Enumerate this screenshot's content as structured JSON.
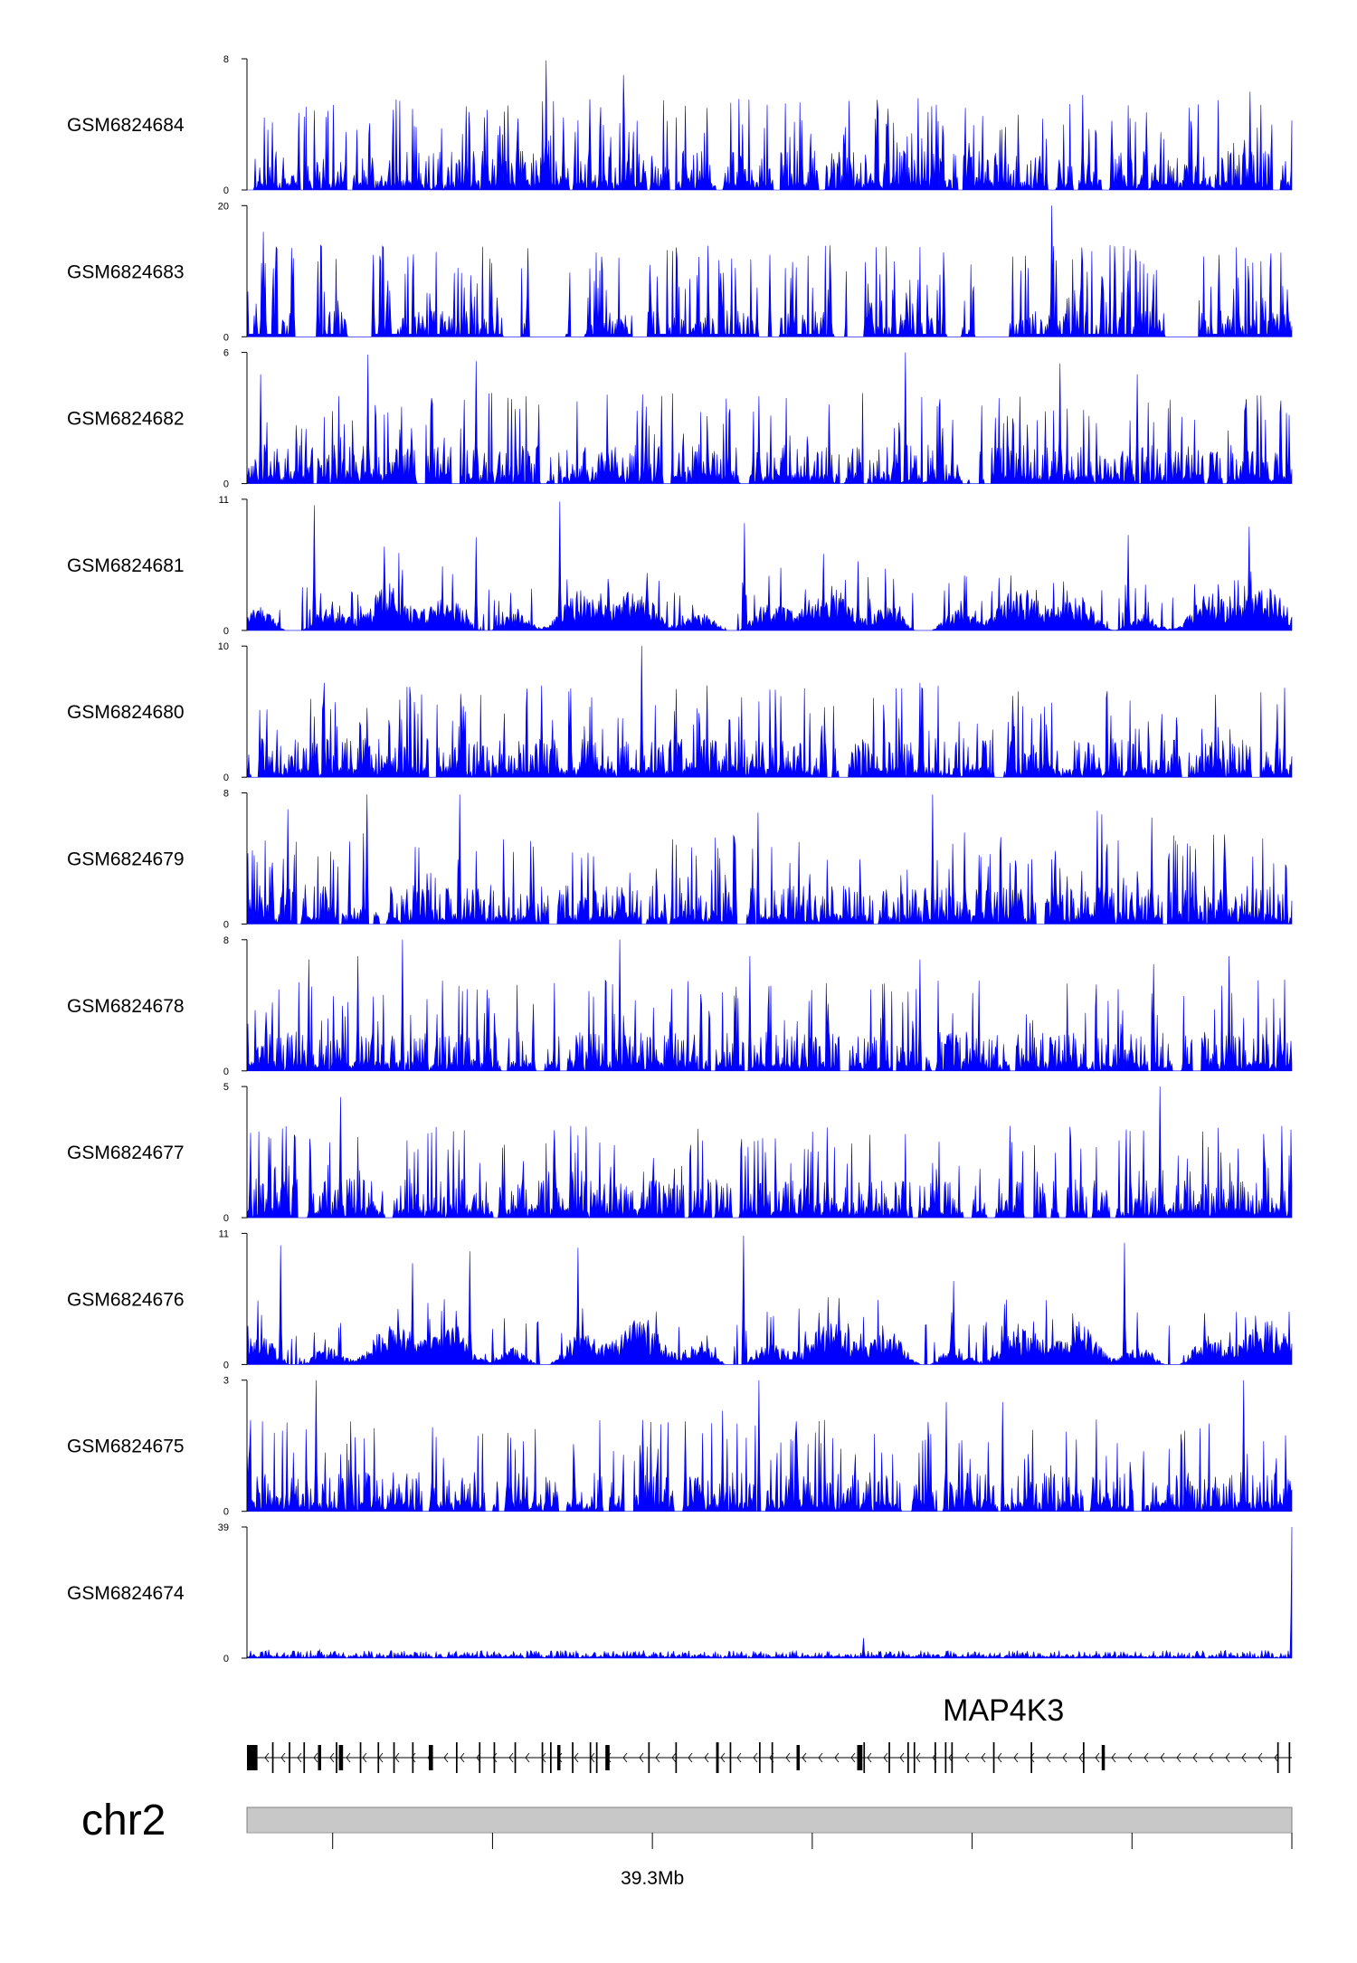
{
  "chart_data": {
    "type": "area",
    "colors": {
      "signal": "#0000ff",
      "axis": "#000000",
      "ideogram": "#c8c8c8",
      "ideogram_border": "#808080"
    },
    "tracks": [
      {
        "name": "GSM6824684",
        "ylim": [
          0,
          8
        ],
        "ymin_label": "0",
        "ymax_label": "8",
        "style": "spiky",
        "seed": 11,
        "peaks": [
          {
            "x": 0.286,
            "y": 7.9
          },
          {
            "x": 0.36,
            "y": 7.0
          },
          {
            "x": 0.96,
            "y": 6.0
          },
          {
            "x": 0.8,
            "y": 5.8
          },
          {
            "x": 0.44,
            "y": 5.0
          },
          {
            "x": 0.05,
            "y": 4.7
          },
          {
            "x": 0.21,
            "y": 5.1
          },
          {
            "x": 0.66,
            "y": 5.2
          }
        ]
      },
      {
        "name": "GSM6824683",
        "ylim": [
          0,
          20
        ],
        "ymin_label": "0",
        "ymax_label": "20",
        "style": "sparse",
        "seed": 23,
        "peaks": [
          {
            "x": 0.77,
            "y": 20
          },
          {
            "x": 0.269,
            "y": 13.5
          },
          {
            "x": 0.5,
            "y": 12.5
          },
          {
            "x": 0.016,
            "y": 16
          },
          {
            "x": 0.62,
            "y": 11.5
          },
          {
            "x": 0.83,
            "y": 13.8
          },
          {
            "x": 0.93,
            "y": 12.5
          },
          {
            "x": 0.068,
            "y": 11.5
          }
        ]
      },
      {
        "name": "GSM6824682",
        "ylim": [
          0,
          6
        ],
        "ymin_label": "0",
        "ymax_label": "6",
        "style": "spiky",
        "seed": 37,
        "peaks": [
          {
            "x": 0.63,
            "y": 6.0
          },
          {
            "x": 0.116,
            "y": 5.9
          },
          {
            "x": 0.219,
            "y": 5.6
          },
          {
            "x": 0.778,
            "y": 5.5
          },
          {
            "x": 0.852,
            "y": 5.0
          },
          {
            "x": 0.013,
            "y": 5.0
          },
          {
            "x": 0.49,
            "y": 4.0
          }
        ]
      },
      {
        "name": "GSM6824681",
        "ylim": [
          0,
          11
        ],
        "ymin_label": "0",
        "ymax_label": "11",
        "style": "dense",
        "seed": 41,
        "peaks": [
          {
            "x": 0.299,
            "y": 10.8
          },
          {
            "x": 0.064,
            "y": 10.5
          },
          {
            "x": 0.476,
            "y": 9.0
          },
          {
            "x": 0.959,
            "y": 8.7
          },
          {
            "x": 0.843,
            "y": 8.0
          },
          {
            "x": 0.219,
            "y": 7.8
          },
          {
            "x": 0.585,
            "y": 5.8
          }
        ]
      },
      {
        "name": "GSM6824680",
        "ylim": [
          0,
          10
        ],
        "ymin_label": "0",
        "ymax_label": "10",
        "style": "spiky",
        "seed": 53,
        "peaks": [
          {
            "x": 0.378,
            "y": 10.0
          },
          {
            "x": 0.074,
            "y": 7.2
          },
          {
            "x": 0.282,
            "y": 7.0
          },
          {
            "x": 0.44,
            "y": 7.0
          },
          {
            "x": 0.644,
            "y": 7.2
          },
          {
            "x": 0.927,
            "y": 6.3
          },
          {
            "x": 0.733,
            "y": 6.2
          }
        ]
      },
      {
        "name": "GSM6824679",
        "ylim": [
          0,
          8
        ],
        "ymin_label": "0",
        "ymax_label": "8",
        "style": "spiky",
        "seed": 67,
        "peaks": [
          {
            "x": 0.115,
            "y": 7.9
          },
          {
            "x": 0.204,
            "y": 7.9
          },
          {
            "x": 0.656,
            "y": 7.9
          },
          {
            "x": 0.814,
            "y": 6.9
          },
          {
            "x": 0.818,
            "y": 6.7
          },
          {
            "x": 0.039,
            "y": 7.0
          },
          {
            "x": 0.489,
            "y": 6.8
          },
          {
            "x": 0.866,
            "y": 6.5
          }
        ]
      },
      {
        "name": "GSM6824678",
        "ylim": [
          0,
          8
        ],
        "ymin_label": "0",
        "ymax_label": "8",
        "style": "spiky",
        "seed": 71,
        "peaks": [
          {
            "x": 0.149,
            "y": 8.0
          },
          {
            "x": 0.357,
            "y": 8.0
          },
          {
            "x": 0.059,
            "y": 6.8
          },
          {
            "x": 0.106,
            "y": 7.0
          },
          {
            "x": 0.481,
            "y": 7.0
          },
          {
            "x": 0.94,
            "y": 7.0
          },
          {
            "x": 0.868,
            "y": 6.5
          },
          {
            "x": 0.644,
            "y": 6.8
          }
        ]
      },
      {
        "name": "GSM6824677",
        "ylim": [
          0,
          5
        ],
        "ymin_label": "0",
        "ymax_label": "5",
        "style": "spiky",
        "seed": 83,
        "peaks": [
          {
            "x": 0.874,
            "y": 5.0
          },
          {
            "x": 0.09,
            "y": 4.6
          },
          {
            "x": 0.034,
            "y": 3.4
          },
          {
            "x": 0.31,
            "y": 3.5
          },
          {
            "x": 0.73,
            "y": 3.5
          },
          {
            "x": 0.99,
            "y": 3.5
          }
        ]
      },
      {
        "name": "GSM6824676",
        "ylim": [
          0,
          11
        ],
        "ymin_label": "0",
        "ymax_label": "11",
        "style": "dense",
        "seed": 97,
        "peaks": [
          {
            "x": 0.475,
            "y": 10.8
          },
          {
            "x": 0.84,
            "y": 10.2
          },
          {
            "x": 0.032,
            "y": 10.0
          },
          {
            "x": 0.213,
            "y": 9.5
          },
          {
            "x": 0.317,
            "y": 9.8
          },
          {
            "x": 0.158,
            "y": 8.5
          },
          {
            "x": 0.676,
            "y": 7.0
          }
        ]
      },
      {
        "name": "GSM6824675",
        "ylim": [
          0,
          3
        ],
        "ymin_label": "0",
        "ymax_label": "3",
        "style": "spiky",
        "seed": 101,
        "peaks": [
          {
            "x": 0.066,
            "y": 3.0
          },
          {
            "x": 0.49,
            "y": 3.0
          },
          {
            "x": 0.954,
            "y": 3.0
          },
          {
            "x": 0.669,
            "y": 2.5
          },
          {
            "x": 0.723,
            "y": 2.5
          },
          {
            "x": 0.455,
            "y": 2.3
          }
        ]
      },
      {
        "name": "GSM6824674",
        "ylim": [
          0,
          39
        ],
        "ymin_label": "0",
        "ymax_label": "39",
        "style": "flat",
        "seed": 113,
        "peaks": [
          {
            "x": 1.0,
            "y": 39
          },
          {
            "x": 0.59,
            "y": 6
          },
          {
            "x": 0.021,
            "y": 2.5
          },
          {
            "x": 0.07,
            "y": 2.5
          },
          {
            "x": 0.85,
            "y": 2
          }
        ]
      }
    ],
    "gene": {
      "name": "MAP4K3",
      "strand": "-",
      "exons": [
        {
          "x": 0.0,
          "w": 0.01,
          "tall": true
        },
        {
          "x": 0.024,
          "w": 0.0015
        },
        {
          "x": 0.04,
          "w": 0.0015
        },
        {
          "x": 0.054,
          "w": 0.0015
        },
        {
          "x": 0.068,
          "w": 0.003,
          "tall": true
        },
        {
          "x": 0.085,
          "w": 0.0015
        },
        {
          "x": 0.088,
          "w": 0.004,
          "tall": true
        },
        {
          "x": 0.108,
          "w": 0.0015
        },
        {
          "x": 0.125,
          "w": 0.0015
        },
        {
          "x": 0.14,
          "w": 0.0015
        },
        {
          "x": 0.158,
          "w": 0.0015
        },
        {
          "x": 0.174,
          "w": 0.004,
          "tall": true
        },
        {
          "x": 0.2,
          "w": 0.0015
        },
        {
          "x": 0.222,
          "w": 0.0015
        },
        {
          "x": 0.236,
          "w": 0.0015
        },
        {
          "x": 0.256,
          "w": 0.0015
        },
        {
          "x": 0.282,
          "w": 0.0015
        },
        {
          "x": 0.29,
          "w": 0.0015
        },
        {
          "x": 0.297,
          "w": 0.003,
          "tall": true
        },
        {
          "x": 0.311,
          "w": 0.0015
        },
        {
          "x": 0.328,
          "w": 0.0015
        },
        {
          "x": 0.334,
          "w": 0.0015
        },
        {
          "x": 0.343,
          "w": 0.004,
          "tall": true
        },
        {
          "x": 0.384,
          "w": 0.0015
        },
        {
          "x": 0.41,
          "w": 0.0015
        },
        {
          "x": 0.449,
          "w": 0.0015
        },
        {
          "x": 0.45,
          "w": 0.0015
        },
        {
          "x": 0.462,
          "w": 0.0015
        },
        {
          "x": 0.49,
          "w": 0.0015
        },
        {
          "x": 0.502,
          "w": 0.0015
        },
        {
          "x": 0.526,
          "w": 0.003,
          "tall": true
        },
        {
          "x": 0.584,
          "w": 0.005,
          "tall": true
        },
        {
          "x": 0.59,
          "w": 0.0015
        },
        {
          "x": 0.614,
          "w": 0.0015
        },
        {
          "x": 0.632,
          "w": 0.0015
        },
        {
          "x": 0.638,
          "w": 0.0015
        },
        {
          "x": 0.658,
          "w": 0.0015
        },
        {
          "x": 0.668,
          "w": 0.0015
        },
        {
          "x": 0.674,
          "w": 0.0015
        },
        {
          "x": 0.714,
          "w": 0.0015
        },
        {
          "x": 0.75,
          "w": 0.0015
        },
        {
          "x": 0.8,
          "w": 0.0015
        },
        {
          "x": 0.818,
          "w": 0.003,
          "tall": true
        },
        {
          "x": 0.986,
          "w": 0.0015
        },
        {
          "x": 0.997,
          "w": 0.0015
        }
      ]
    },
    "chromosome": "chr2",
    "axis_ticks": [
      {
        "x": 0.082,
        "label": ""
      },
      {
        "x": 0.235,
        "label": ""
      },
      {
        "x": 0.388,
        "label": "39.3Mb"
      },
      {
        "x": 0.541,
        "label": ""
      },
      {
        "x": 0.694,
        "label": ""
      },
      {
        "x": 0.847,
        "label": ""
      },
      {
        "x": 1.0,
        "label": ""
      }
    ]
  }
}
